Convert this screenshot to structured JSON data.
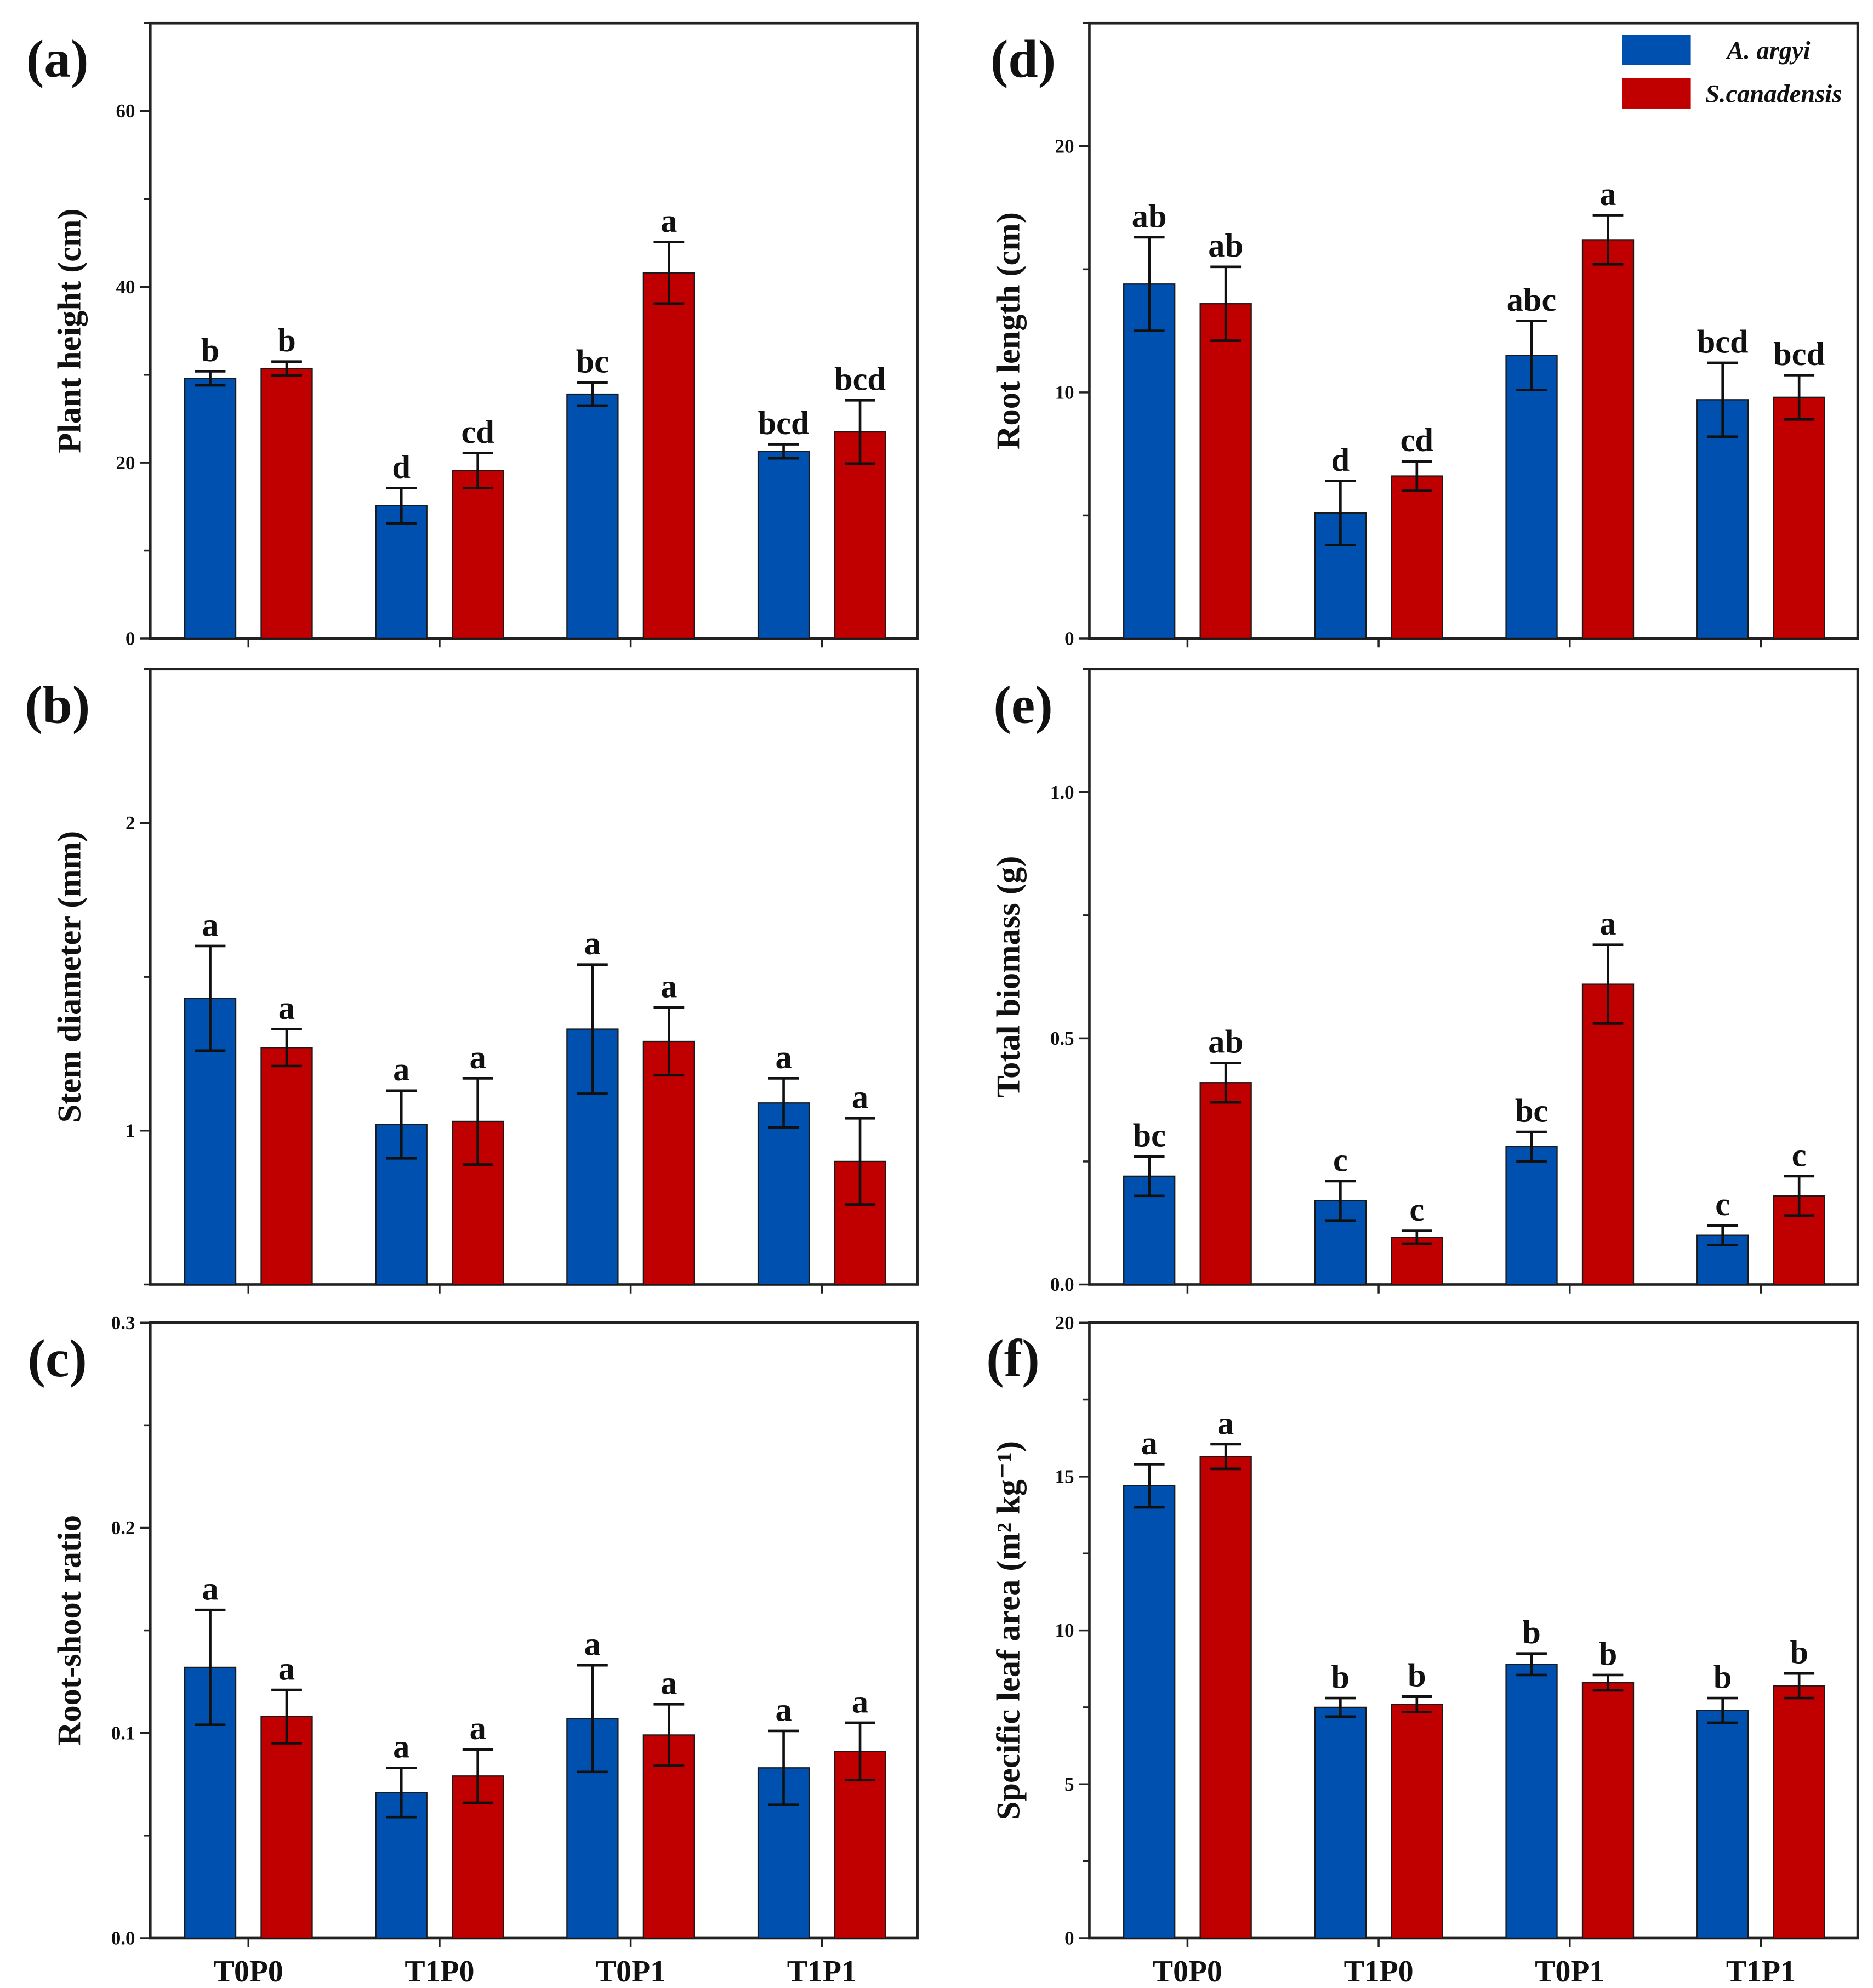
{
  "legend": {
    "position": "top-right of panel (d)",
    "entries": [
      {
        "label": "A. argyi",
        "color": "#0050B0"
      },
      {
        "label": "S.canadensis",
        "color": "#C00000"
      }
    ]
  },
  "chart_data": [
    {
      "panel": "(a)",
      "type": "bar",
      "ylabel": "Plant height (cm)",
      "ylim": [
        0,
        70
      ],
      "yticks": [
        0,
        20,
        40,
        60
      ],
      "categories": [
        "T0P0",
        "T1P0",
        "T0P1",
        "T1P1"
      ],
      "show_xticklabels": false,
      "series": [
        {
          "name": "A. argyi",
          "values": [
            29.6,
            15.1,
            27.8,
            21.3
          ],
          "errors": [
            0.8,
            2.0,
            1.3,
            0.8
          ],
          "letters": [
            "b",
            "d",
            "bc",
            "bcd"
          ]
        },
        {
          "name": "S.canadensis",
          "values": [
            30.7,
            19.1,
            41.6,
            23.5
          ],
          "errors": [
            0.8,
            2.0,
            3.5,
            3.6
          ],
          "letters": [
            "b",
            "cd",
            "a",
            "bcd"
          ]
        }
      ]
    },
    {
      "panel": "(b)",
      "type": "bar",
      "ylabel": "Stem diameter (mm)",
      "ylim": [
        0.5,
        2.5
      ],
      "yticks": [
        1,
        2
      ],
      "categories": [
        "T0P0",
        "T1P0",
        "T0P1",
        "T1P1"
      ],
      "show_xticklabels": false,
      "series": [
        {
          "name": "A. argyi",
          "values": [
            1.43,
            1.02,
            1.33,
            1.09
          ],
          "errors": [
            0.17,
            0.11,
            0.21,
            0.08
          ],
          "letters": [
            "a",
            "a",
            "a",
            "a"
          ]
        },
        {
          "name": "S.canadensis",
          "values": [
            1.27,
            1.03,
            1.29,
            0.9
          ],
          "errors": [
            0.06,
            0.14,
            0.11,
            0.14
          ],
          "letters": [
            "a",
            "a",
            "a",
            "a"
          ]
        }
      ]
    },
    {
      "panel": "(c)",
      "type": "bar",
      "ylabel": "Root-shoot ratio",
      "ylim": [
        0,
        0.3
      ],
      "yticks": [
        "0.0",
        "0.1",
        "0.2",
        "0.3"
      ],
      "categories": [
        "T0P0",
        "T1P0",
        "T0P1",
        "T1P1"
      ],
      "show_xticklabels": true,
      "series": [
        {
          "name": "A. argyi",
          "values": [
            0.132,
            0.071,
            0.107,
            0.083
          ],
          "errors": [
            0.028,
            0.012,
            0.026,
            0.018
          ],
          "letters": [
            "a",
            "a",
            "a",
            "a"
          ]
        },
        {
          "name": "S.canadensis",
          "values": [
            0.108,
            0.079,
            0.099,
            0.091
          ],
          "errors": [
            0.013,
            0.013,
            0.015,
            0.014
          ],
          "letters": [
            "a",
            "a",
            "a",
            "a"
          ]
        }
      ]
    },
    {
      "panel": "(d)",
      "type": "bar",
      "ylabel": "Root length (cm)",
      "ylim": [
        0,
        25
      ],
      "yticks": [
        0,
        10,
        20
      ],
      "categories": [
        "T0P0",
        "T1P0",
        "T0P1",
        "T1P1"
      ],
      "show_xticklabels": false,
      "has_legend": true,
      "series": [
        {
          "name": "A. argyi",
          "values": [
            14.4,
            5.1,
            11.5,
            9.7
          ],
          "errors": [
            1.9,
            1.3,
            1.4,
            1.5
          ],
          "letters": [
            "ab",
            "d",
            "abc",
            "bcd"
          ]
        },
        {
          "name": "S.canadensis",
          "values": [
            13.6,
            6.6,
            16.2,
            9.8
          ],
          "errors": [
            1.5,
            0.6,
            1.0,
            0.9
          ],
          "letters": [
            "ab",
            "cd",
            "a",
            "bcd"
          ]
        }
      ]
    },
    {
      "panel": "(e)",
      "type": "bar",
      "ylabel": "Total biomass (g)",
      "ylim": [
        0,
        1.25
      ],
      "yticks": [
        "0.0",
        "0.5",
        "1.0"
      ],
      "categories": [
        "T0P0",
        "T1P0",
        "T0P1",
        "T1P1"
      ],
      "show_xticklabels": false,
      "series": [
        {
          "name": "A. argyi",
          "values": [
            0.22,
            0.17,
            0.28,
            0.1
          ],
          "errors": [
            0.04,
            0.04,
            0.03,
            0.02
          ],
          "letters": [
            "bc",
            "c",
            "bc",
            "c"
          ]
        },
        {
          "name": "S.canadensis",
          "values": [
            0.41,
            0.096,
            0.61,
            0.18
          ],
          "errors": [
            0.04,
            0.013,
            0.08,
            0.04
          ],
          "letters": [
            "ab",
            "c",
            "a",
            "c"
          ]
        }
      ]
    },
    {
      "panel": "(f)",
      "type": "bar",
      "ylabel": "Specific leaf area (m² kg⁻¹)",
      "ylim": [
        0,
        20
      ],
      "yticks": [
        0,
        5,
        10,
        15,
        20
      ],
      "categories": [
        "T0P0",
        "T1P0",
        "T0P1",
        "T1P1"
      ],
      "show_xticklabels": true,
      "series": [
        {
          "name": "A. argyi",
          "values": [
            14.7,
            7.5,
            8.9,
            7.4
          ],
          "errors": [
            0.7,
            0.3,
            0.35,
            0.4
          ],
          "letters": [
            "a",
            "b",
            "b",
            "b"
          ]
        },
        {
          "name": "S.canadensis",
          "values": [
            15.65,
            7.6,
            8.3,
            8.2
          ],
          "errors": [
            0.4,
            0.25,
            0.25,
            0.4
          ],
          "letters": [
            "a",
            "b",
            "b",
            "b"
          ]
        }
      ]
    }
  ]
}
